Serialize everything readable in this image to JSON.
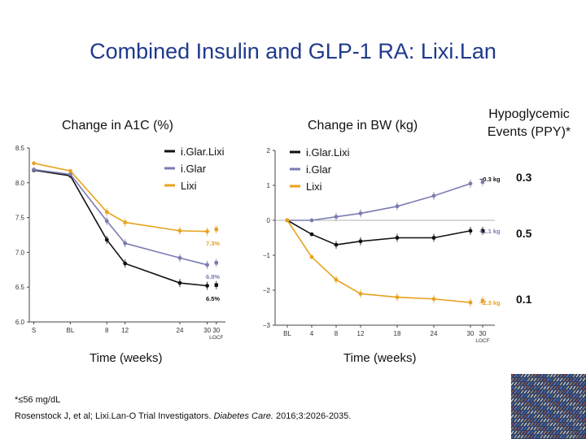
{
  "title": "Combined Insulin and GLP-1 RA: Lixi.Lan",
  "colors": {
    "title": "#1f3a8c",
    "iglarlixi": "#111111",
    "iglar": "#7b7bb3",
    "lixi": "#e8a21f"
  },
  "panels": {
    "a1c_title": "Change in A1C  (%)",
    "bw_title": "Change in BW (kg)",
    "hypo_title": "Hypoglycemic Events (PPY)*",
    "a1c_xlabel": "Time (weeks)",
    "bw_xlabel": "Time (weeks)"
  },
  "hypo_values": [
    "0.3",
    "0.5",
    "0.1"
  ],
  "footnote": "*≤56 mg/dL",
  "citation": {
    "pre": "Rosenstock J, et al; Lixi.Lan-O Trial Investigators. ",
    "journal": "Diabetes Care.",
    "post": " 2016;3:2026-2035."
  },
  "chart_data": [
    {
      "type": "line",
      "categories": [
        "S",
        "BL",
        "8",
        "12",
        "24",
        "30",
        "30\nLOCF"
      ],
      "x": [
        -8,
        0,
        8,
        12,
        24,
        30
      ],
      "ylim": [
        6.0,
        8.5
      ],
      "yticks": [
        "6.0",
        "6.5",
        "7.0",
        "7.5",
        "8.0",
        "8.5"
      ],
      "ytick_values": [
        6.0,
        6.5,
        7.0,
        7.5,
        8.0,
        8.5
      ],
      "xtick_values": [
        -8,
        0,
        8,
        12,
        24,
        30,
        32
      ],
      "legend": "top-right",
      "series": [
        {
          "name": "i.Glar.Lixi",
          "color": "#111111",
          "values": [
            8.18,
            8.1,
            7.18,
            6.84,
            6.56,
            6.52
          ],
          "locf": 6.53,
          "label": "6.5%"
        },
        {
          "name": "i.Glar",
          "color": "#7b7bb3",
          "values": [
            8.19,
            8.12,
            7.45,
            7.13,
            6.92,
            6.82
          ],
          "locf": 6.85,
          "label": "6.8%"
        },
        {
          "name": "Lixi",
          "color": "#e8a21f",
          "values": [
            8.28,
            8.17,
            7.58,
            7.43,
            7.31,
            7.3
          ],
          "locf": 7.33,
          "label": "7.3%"
        }
      ]
    },
    {
      "type": "line",
      "categories": [
        "BL",
        "4",
        "8",
        "12",
        "18",
        "24",
        "30",
        "30\nLOCF"
      ],
      "x": [
        0,
        4,
        8,
        12,
        18,
        24,
        30
      ],
      "ylim": [
        -3,
        2
      ],
      "yticks": [
        "−3",
        "−2",
        "−1",
        "0",
        "1",
        "2"
      ],
      "ytick_values": [
        -3,
        -2,
        -1,
        0,
        1,
        2
      ],
      "xtick_values": [
        0,
        4,
        8,
        12,
        18,
        24,
        30,
        32
      ],
      "legend": "top-left",
      "series": [
        {
          "name": "i.Glar.Lixi",
          "color": "#111111",
          "values": [
            0,
            -0.4,
            -0.7,
            -0.6,
            -0.5,
            -0.5,
            -0.3
          ],
          "locf": -0.3,
          "label": "−0.3 kg"
        },
        {
          "name": "i.Glar",
          "color": "#7b7bb3",
          "values": [
            0,
            0,
            0.1,
            0.2,
            0.4,
            0.7,
            1.05
          ],
          "locf": 1.1,
          "label": "+1.1 kg"
        },
        {
          "name": "Lixi",
          "color": "#e8a21f",
          "values": [
            0,
            -1.05,
            -1.7,
            -2.1,
            -2.2,
            -2.25,
            -2.35
          ],
          "locf": -2.3,
          "label": "−2.3 kg"
        }
      ]
    }
  ]
}
